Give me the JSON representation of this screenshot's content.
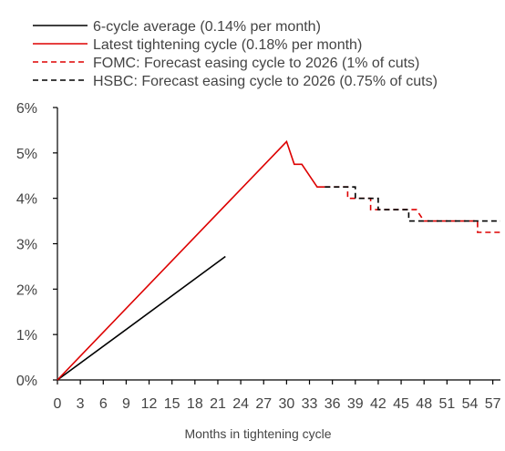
{
  "chart_data": {
    "type": "line",
    "title": "",
    "xlabel": "Months in tightening cycle",
    "ylabel": "",
    "xlim": [
      0,
      58
    ],
    "ylim": [
      0,
      6
    ],
    "x_ticks": [
      0,
      3,
      6,
      9,
      12,
      15,
      18,
      21,
      24,
      27,
      30,
      33,
      36,
      39,
      42,
      45,
      48,
      51,
      54,
      57
    ],
    "y_ticks": [
      "0%",
      "1%",
      "2%",
      "3%",
      "4%",
      "5%",
      "6%"
    ],
    "legend_position": "top",
    "series": [
      {
        "name": "6-cycle average (0.14% per month)",
        "color": "#000000",
        "dash": "solid",
        "points": [
          [
            0,
            0
          ],
          [
            22,
            2.72
          ]
        ]
      },
      {
        "name": "Latest tightening cycle (0.18% per month)",
        "color": "#dd0000",
        "dash": "solid",
        "points": [
          [
            0,
            0
          ],
          [
            30,
            5.25
          ],
          [
            31,
            4.75
          ],
          [
            32,
            4.75
          ],
          [
            34,
            4.25
          ],
          [
            35,
            4.25
          ]
        ]
      },
      {
        "name": "FOMC: Forecast easing cycle to 2026 (1% of cuts)",
        "color": "#dd0000",
        "dash": "dashed",
        "points": [
          [
            35,
            4.25
          ],
          [
            38,
            4.25
          ],
          [
            38,
            4.0
          ],
          [
            41,
            4.0
          ],
          [
            41,
            3.75
          ],
          [
            47,
            3.75
          ],
          [
            48,
            3.5
          ],
          [
            55,
            3.5
          ],
          [
            55,
            3.25
          ],
          [
            58,
            3.25
          ]
        ]
      },
      {
        "name": "HSBC: Forecast easing cycle to 2026 (0.75% of cuts)",
        "color": "#000000",
        "dash": "dashed",
        "points": [
          [
            35,
            4.25
          ],
          [
            39,
            4.25
          ],
          [
            39,
            4.0
          ],
          [
            42,
            4.0
          ],
          [
            42,
            3.75
          ],
          [
            46,
            3.75
          ],
          [
            46,
            3.5
          ],
          [
            58,
            3.5
          ]
        ]
      }
    ]
  }
}
